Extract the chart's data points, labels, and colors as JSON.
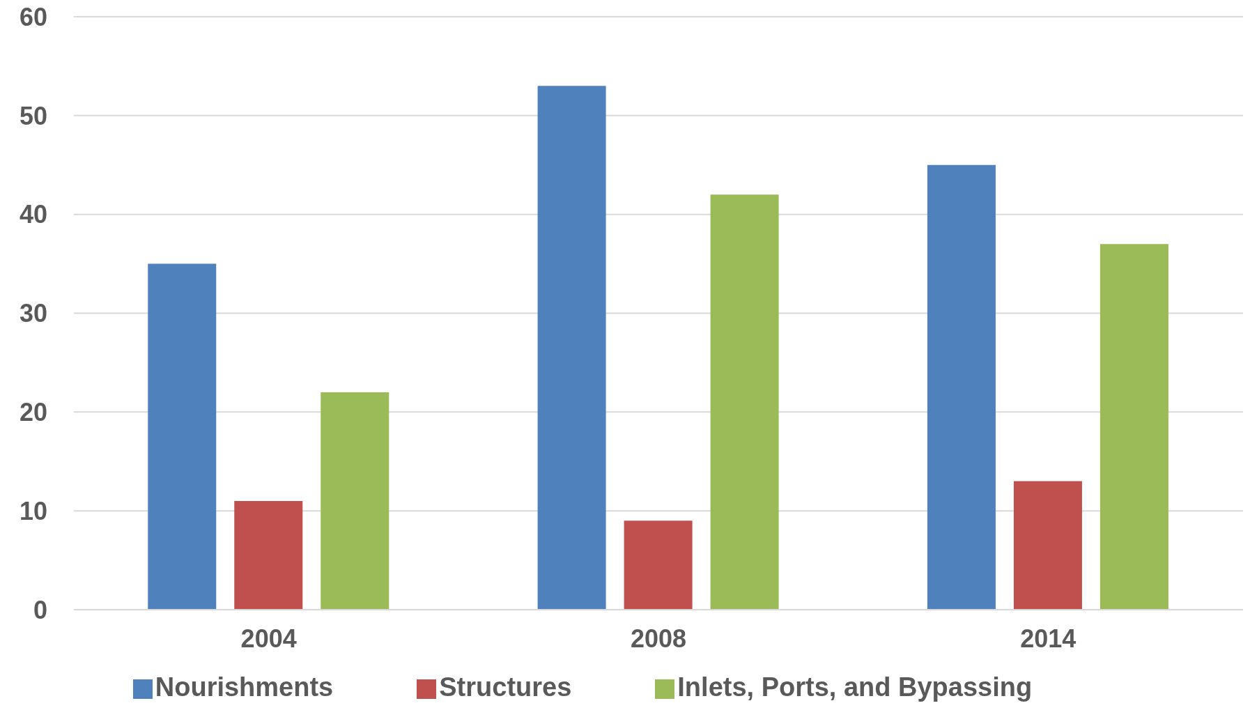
{
  "chart_data": {
    "type": "bar",
    "categories": [
      "2004",
      "2008",
      "2014"
    ],
    "series": [
      {
        "name": "Nourishments",
        "color": "#4f81bd",
        "values": [
          35,
          53,
          45
        ]
      },
      {
        "name": "Structures",
        "color": "#c0504d",
        "values": [
          11,
          9,
          13
        ]
      },
      {
        "name": "Inlets, Ports, and Bypassing",
        "color": "#9bbb59",
        "values": [
          22,
          42,
          37
        ]
      }
    ],
    "ylim": [
      0,
      60
    ],
    "yticks": [
      0,
      10,
      20,
      30,
      40,
      50,
      60
    ],
    "grid": "y",
    "legend": "bottom"
  }
}
